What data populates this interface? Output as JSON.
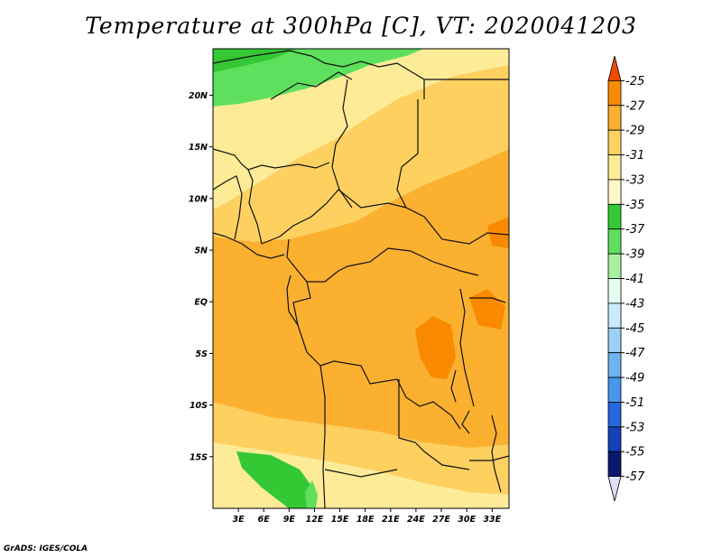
{
  "title": "Temperature at 300hPa [C], VT: 2020041203",
  "credit": "GrADS: IGES/COLA",
  "map": {
    "lat_labels": [
      {
        "label": "20N",
        "lat": 20
      },
      {
        "label": "15N",
        "lat": 15
      },
      {
        "label": "10N",
        "lat": 10
      },
      {
        "label": "5N",
        "lat": 5
      },
      {
        "label": "EQ",
        "lat": 0
      },
      {
        "label": "5S",
        "lat": -5
      },
      {
        "label": "10S",
        "lat": -10
      },
      {
        "label": "15S",
        "lat": -15
      }
    ],
    "lon_labels": [
      {
        "label": "3E",
        "lon": 3
      },
      {
        "label": "6E",
        "lon": 6
      },
      {
        "label": "9E",
        "lon": 9
      },
      {
        "label": "12E",
        "lon": 12
      },
      {
        "label": "15E",
        "lon": 15
      },
      {
        "label": "18E",
        "lon": 18
      },
      {
        "label": "21E",
        "lon": 21
      },
      {
        "label": "24E",
        "lon": 24
      },
      {
        "label": "27E",
        "lon": 27
      },
      {
        "label": "30E",
        "lon": 30
      },
      {
        "label": "33E",
        "lon": 33
      }
    ],
    "lon_range": [
      0,
      35
    ],
    "lat_range": [
      -20,
      24.5
    ]
  },
  "colorbar": {
    "levels": [
      "-25",
      "-27",
      "-29",
      "-31",
      "-33",
      "-35",
      "-37",
      "-39",
      "-41",
      "-43",
      "-45",
      "-47",
      "-49",
      "-51",
      "-53",
      "-55",
      "-57"
    ],
    "colors": [
      "#f04a00",
      "#f98a00",
      "#fbb030",
      "#fdd060",
      "#fdeb98",
      "#fefac8",
      "#34c834",
      "#5ee05e",
      "#a8f0a0",
      "#e4fff2",
      "#c8ecfc",
      "#9cd0f6",
      "#6eb4f0",
      "#4896ea",
      "#2468dc",
      "#1440b8",
      "#0a1870",
      "#e0e0f8"
    ]
  }
}
